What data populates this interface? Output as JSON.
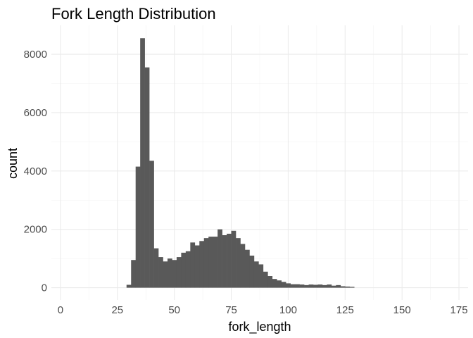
{
  "chart_data": {
    "type": "bar",
    "title": "Fork Length Distribution",
    "xlabel": "fork_length",
    "ylabel": "count",
    "xlim": [
      -4,
      179
    ],
    "ylim": [
      -420,
      8990
    ],
    "x_ticks": [
      0,
      25,
      50,
      75,
      100,
      125,
      150,
      175
    ],
    "y_ticks": [
      0,
      2000,
      4000,
      6000,
      8000
    ],
    "x_tick_labels": [
      "0",
      "25",
      "50",
      "75",
      "100",
      "125",
      "150",
      "175"
    ],
    "y_tick_labels": [
      "0",
      "2000",
      "4000",
      "6000",
      "8000"
    ],
    "grid": true,
    "bar_color": "#595959",
    "bin_width": 2,
    "bin_starts": [
      29,
      31,
      33,
      35,
      37,
      39,
      41,
      43,
      45,
      47,
      49,
      51,
      53,
      55,
      57,
      59,
      61,
      63,
      65,
      67,
      69,
      71,
      73,
      75,
      77,
      79,
      81,
      83,
      85,
      87,
      89,
      91,
      93,
      95,
      97,
      99,
      101,
      103,
      105,
      107,
      109,
      111,
      113,
      115,
      117,
      119,
      121,
      123,
      125,
      127
    ],
    "values": [
      100,
      950,
      4150,
      8550,
      7550,
      4350,
      1350,
      1050,
      900,
      1000,
      950,
      1050,
      1200,
      1250,
      1550,
      1450,
      1600,
      1700,
      1750,
      1750,
      2000,
      1800,
      1850,
      1950,
      1700,
      1500,
      1300,
      1100,
      900,
      800,
      550,
      400,
      300,
      250,
      200,
      150,
      120,
      120,
      110,
      90,
      110,
      100,
      110,
      90,
      110,
      70,
      90,
      50,
      40,
      30
    ]
  }
}
